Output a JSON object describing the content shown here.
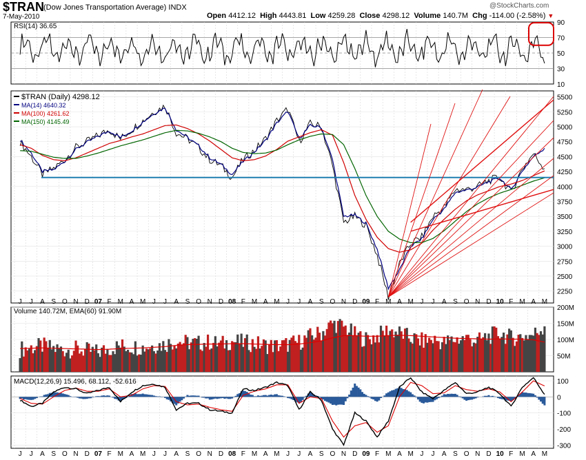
{
  "header": {
    "symbol": "$TRAN",
    "name": "(Dow Jones Transportation Average)",
    "exchange": "INDX",
    "date": "7-May-2010",
    "open_label": "Open",
    "open": "4412.12",
    "high_label": "High",
    "high": "4443.81",
    "low_label": "Low",
    "low": "4259.28",
    "close_label": "Close",
    "close": "4298.12",
    "volume_label": "Volume",
    "volume": "140.7M",
    "chg_label": "Chg",
    "chg": "-114.00 (-2.58%)",
    "watermark": "@StockCharts.com"
  },
  "colors": {
    "price": "#000000",
    "ma14": "#000080",
    "ma100": "#d00000",
    "ma150": "#006400",
    "support": "#1f7fb0",
    "trendline": "#e01010",
    "volume_up": "#c02020",
    "volume_down": "#444444",
    "macd_hist": "#2a5a9a"
  },
  "x_axis_ticks": [
    "J",
    "J",
    "A",
    "S",
    "O",
    "N",
    "D",
    "07",
    "F",
    "M",
    "A",
    "M",
    "J",
    "J",
    "A",
    "S",
    "O",
    "N",
    "D",
    "08",
    "F",
    "M",
    "A",
    "M",
    "J",
    "J",
    "A",
    "S",
    "O",
    "N",
    "D",
    "09",
    "F",
    "M",
    "A",
    "M",
    "J",
    "J",
    "A",
    "S",
    "O",
    "N",
    "D",
    "10",
    "F",
    "M",
    "A",
    "M"
  ],
  "chart_data": [
    {
      "type": "line",
      "panel": "RSI",
      "label": "RSI(14) 36.65",
      "ylim": [
        10,
        90
      ],
      "yticks": [
        90,
        70,
        50,
        30,
        10
      ],
      "reference_lines": [
        70,
        50,
        30
      ],
      "last": 36.65,
      "annotation": "circle around high RSI readings, Mar–Apr 2010"
    },
    {
      "type": "line",
      "panel": "Price",
      "legend": [
        "$TRAN (Daily) 4298.12",
        "MA(14) 4640.32",
        "MA(100) 4261.62",
        "MA(150) 4145.49"
      ],
      "yticks": [
        5500,
        5250,
        5000,
        4750,
        4500,
        4250,
        4000,
        3750,
        3500,
        3250,
        3000,
        2750,
        2500,
        2250
      ],
      "ylim": [
        2050,
        5600
      ],
      "x_months": [
        "Jun 06",
        "Jul 06",
        "Aug 06",
        "Sep 06",
        "Oct 06",
        "Nov 06",
        "Dec 06",
        "Jan 07",
        "Feb 07",
        "Mar 07",
        "Apr 07",
        "May 07",
        "Jun 07",
        "Jul 07",
        "Aug 07",
        "Sep 07",
        "Oct 07",
        "Nov 07",
        "Dec 07",
        "Jan 08",
        "Feb 08",
        "Mar 08",
        "Apr 08",
        "May 08",
        "Jun 08",
        "Jul 08",
        "Aug 08",
        "Sep 08",
        "Oct 08",
        "Nov 08",
        "Dec 08",
        "Jan 09",
        "Feb 09",
        "Mar 09",
        "Apr 09",
        "May 09",
        "Jun 09",
        "Jul 09",
        "Aug 09",
        "Sep 09",
        "Oct 09",
        "Nov 09",
        "Dec 09",
        "Jan 10",
        "Feb 10",
        "Mar 10",
        "Apr 10",
        "May 10"
      ],
      "series": [
        {
          "name": "$TRAN (Daily)",
          "values": [
            4750,
            4500,
            4200,
            4300,
            4450,
            4650,
            4750,
            4850,
            4950,
            4800,
            4950,
            5100,
            5250,
            5350,
            4900,
            4800,
            4650,
            4450,
            4350,
            4150,
            4450,
            4600,
            4800,
            5100,
            5300,
            4750,
            5050,
            5000,
            4350,
            3400,
            3500,
            3350,
            2850,
            2150,
            2700,
            3050,
            3150,
            3500,
            3650,
            3950,
            3950,
            4000,
            4100,
            4150,
            3900,
            4300,
            4550,
            4300
          ]
        },
        {
          "name": "MA(14)",
          "values": [
            4780,
            4560,
            4250,
            4280,
            4420,
            4620,
            4740,
            4840,
            4930,
            4820,
            4930,
            5080,
            5220,
            5320,
            4950,
            4820,
            4680,
            4480,
            4370,
            4200,
            4420,
            4580,
            4770,
            5060,
            5260,
            4800,
            5020,
            4990,
            4450,
            3500,
            3520,
            3380,
            2950,
            2300,
            2600,
            3000,
            3120,
            3450,
            3620,
            3900,
            3940,
            3990,
            4080,
            4140,
            3940,
            4260,
            4500,
            4640
          ]
        },
        {
          "name": "MA(100)",
          "values": [
            4700,
            4640,
            4520,
            4450,
            4430,
            4480,
            4560,
            4640,
            4720,
            4770,
            4830,
            4880,
            4950,
            5020,
            5030,
            4970,
            4880,
            4760,
            4620,
            4480,
            4430,
            4450,
            4510,
            4620,
            4760,
            4830,
            4900,
            4950,
            4860,
            4400,
            3850,
            3450,
            3150,
            2960,
            2900,
            2940,
            3050,
            3270,
            3450,
            3620,
            3760,
            3860,
            3930,
            4000,
            4040,
            4100,
            4180,
            4262
          ]
        },
        {
          "name": "MA(150)",
          "values": [
            4600,
            4590,
            4540,
            4490,
            4470,
            4470,
            4510,
            4560,
            4620,
            4680,
            4730,
            4780,
            4840,
            4900,
            4940,
            4930,
            4890,
            4830,
            4750,
            4640,
            4570,
            4550,
            4560,
            4610,
            4700,
            4780,
            4840,
            4880,
            4870,
            4700,
            4300,
            3850,
            3500,
            3250,
            3120,
            3060,
            3060,
            3130,
            3260,
            3420,
            3580,
            3710,
            3810,
            3890,
            3950,
            4020,
            4090,
            4145
          ]
        }
      ],
      "horizontal_support": 4150,
      "annotation": "red fan trendlines drawn from the March 2009 low"
    },
    {
      "type": "bar",
      "panel": "Volume",
      "label": "Volume 140.72M, EMA(60) 91.90M",
      "yticks": [
        "200M",
        "150M",
        "100M",
        "50M"
      ],
      "ylim": [
        0,
        200
      ],
      "unit": "M",
      "series": [
        {
          "name": "Volume",
          "values": [
            70,
            75,
            80,
            72,
            68,
            70,
            65,
            60,
            72,
            80,
            78,
            76,
            82,
            85,
            95,
            90,
            88,
            92,
            85,
            95,
            90,
            88,
            82,
            80,
            85,
            92,
            110,
            120,
            150,
            140,
            115,
            100,
            110,
            130,
            120,
            105,
            95,
            100,
            90,
            100,
            105,
            95,
            110,
            120,
            105,
            110,
            115,
            140.7
          ]
        },
        {
          "name": "EMA(60)",
          "values": [
            72,
            73,
            74,
            73,
            72,
            71,
            70,
            69,
            70,
            72,
            73,
            74,
            76,
            78,
            82,
            84,
            85,
            86,
            86,
            87,
            87,
            86,
            85,
            84,
            84,
            86,
            90,
            96,
            105,
            112,
            112,
            110,
            110,
            112,
            113,
            112,
            110,
            108,
            106,
            104,
            103,
            102,
            101,
            102,
            101,
            101,
            99,
            91.9
          ]
        }
      ]
    },
    {
      "type": "line",
      "panel": "MACD",
      "label": "MACD(12,26,9) 15.496, 68.112, -52.616",
      "yticks": [
        100,
        0,
        -100,
        -200,
        -300
      ],
      "ylim": [
        -320,
        130
      ],
      "series": [
        {
          "name": "MACD",
          "values": [
            -20,
            -60,
            -40,
            30,
            60,
            50,
            20,
            40,
            60,
            -30,
            30,
            70,
            80,
            60,
            -80,
            -40,
            -40,
            -80,
            -90,
            -100,
            50,
            40,
            60,
            90,
            70,
            -80,
            30,
            -20,
            -200,
            -300,
            -100,
            -150,
            -250,
            -150,
            60,
            120,
            30,
            -10,
            40,
            90,
            20,
            30,
            60,
            20,
            -60,
            60,
            120,
            15.5
          ]
        },
        {
          "name": "Signal",
          "values": [
            -10,
            -40,
            -45,
            0,
            40,
            55,
            35,
            35,
            50,
            0,
            10,
            50,
            70,
            65,
            -30,
            -50,
            -45,
            -65,
            -80,
            -90,
            10,
            35,
            50,
            75,
            75,
            -40,
            0,
            -10,
            -150,
            -250,
            -180,
            -160,
            -220,
            -180,
            0,
            90,
            70,
            20,
            25,
            70,
            45,
            35,
            50,
            30,
            -30,
            30,
            100,
            68.1
          ]
        },
        {
          "name": "Histogram",
          "values": [
            -10,
            -20,
            5,
            30,
            20,
            -5,
            -15,
            5,
            10,
            -30,
            20,
            20,
            10,
            -5,
            -50,
            10,
            5,
            -15,
            -10,
            -10,
            40,
            5,
            10,
            15,
            -5,
            -40,
            30,
            -10,
            -50,
            -50,
            80,
            10,
            -30,
            30,
            60,
            30,
            -40,
            -30,
            15,
            20,
            -25,
            -5,
            10,
            -10,
            -30,
            30,
            20,
            -52.6
          ]
        }
      ]
    }
  ]
}
